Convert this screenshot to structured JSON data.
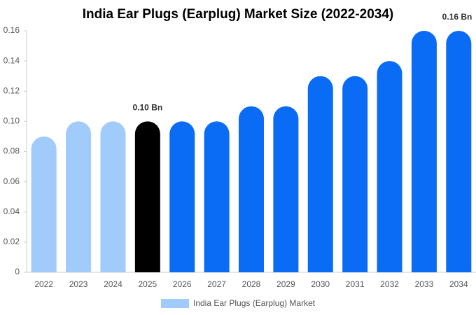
{
  "chart_data": {
    "type": "bar",
    "title": "India Ear Plugs (Earplug) Market Size (2022-2034)",
    "categories": [
      "2022",
      "2023",
      "2024",
      "2025",
      "2026",
      "2027",
      "2028",
      "2029",
      "2030",
      "2031",
      "2032",
      "2033",
      "2034"
    ],
    "series": [
      {
        "name": "India Ear Plugs (Earplug) Market",
        "color": "#a0cbfb",
        "colors": [
          "#a0cbfb",
          "#a0cbfb",
          "#a0cbfb",
          "#000000",
          "#0a6cf5",
          "#0a6cf5",
          "#0a6cf5",
          "#0a6cf5",
          "#0a6cf5",
          "#0a6cf5",
          "#0a6cf5",
          "#0a6cf5",
          "#0a6cf5"
        ],
        "values": [
          0.09,
          0.1,
          0.1,
          0.1,
          0.1,
          0.1,
          0.11,
          0.11,
          0.13,
          0.13,
          0.14,
          0.16,
          0.16
        ],
        "value_labels": [
          null,
          null,
          null,
          "0.10 Bn",
          null,
          null,
          null,
          null,
          null,
          null,
          null,
          null,
          "0.16 Bn"
        ]
      }
    ],
    "ylim": [
      0,
      0.16
    ],
    "yticks": [
      0,
      0.02,
      0.04,
      0.06,
      0.08,
      {
        "value": 0.1,
        "label": "0.10"
      },
      0.12,
      0.14,
      0.16
    ],
    "grid": false
  }
}
